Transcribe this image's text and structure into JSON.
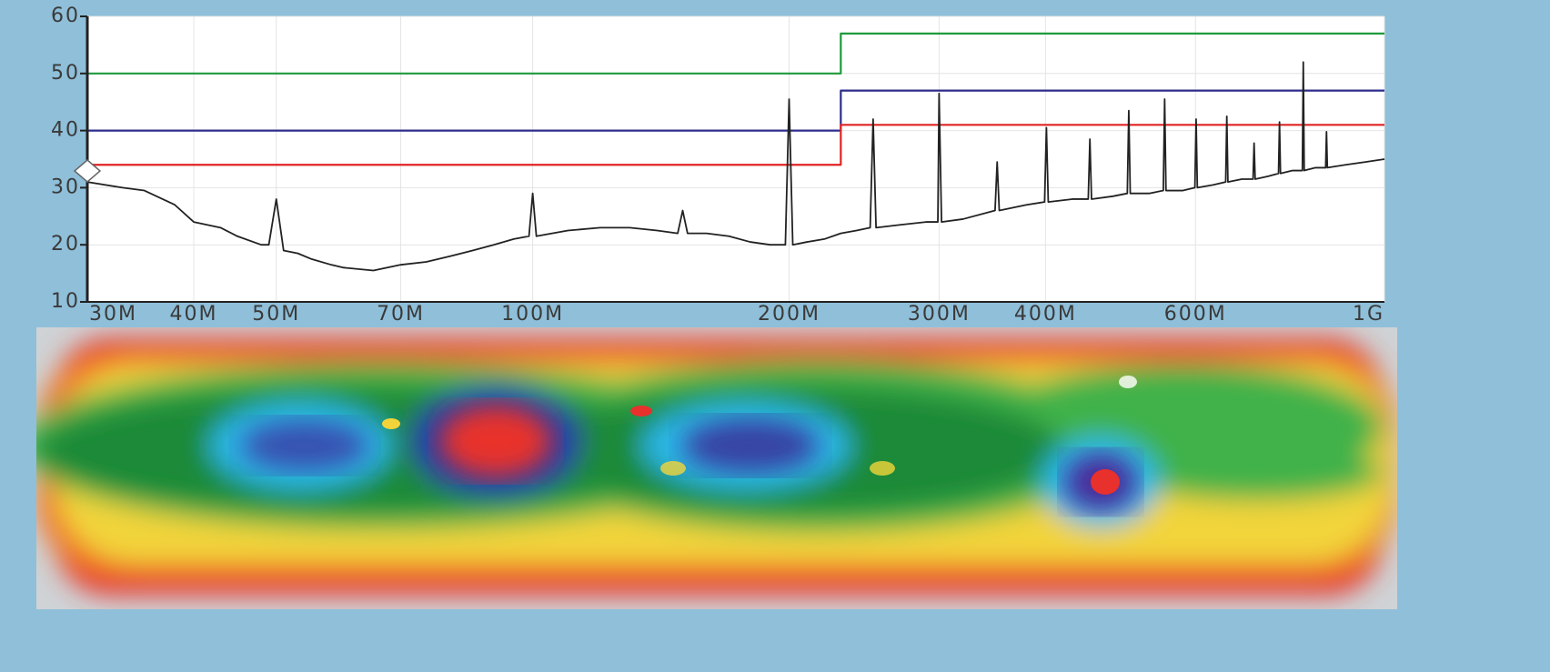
{
  "chart_data": {
    "type": "line",
    "xscale": "log",
    "grid": true,
    "xlim": [
      30,
      1000
    ],
    "ylim": [
      10,
      60
    ],
    "xticks": [
      {
        "value": 30,
        "label": "30M"
      },
      {
        "value": 40,
        "label": "40M"
      },
      {
        "value": 50,
        "label": "50M"
      },
      {
        "value": 70,
        "label": "70M"
      },
      {
        "value": 100,
        "label": "100M"
      },
      {
        "value": 200,
        "label": "200M"
      },
      {
        "value": 300,
        "label": "300M"
      },
      {
        "value": 400,
        "label": "400M"
      },
      {
        "value": 600,
        "label": "600M"
      },
      {
        "value": 1000,
        "label": "1G"
      }
    ],
    "yticks": [
      10,
      20,
      30,
      40,
      50,
      60
    ],
    "series": [
      {
        "color": "#1e9a3c",
        "x": [
          30,
          230,
          230,
          1000
        ],
        "values": [
          50,
          50,
          57,
          57
        ]
      },
      {
        "color": "#2c2c8c",
        "x": [
          30,
          230,
          230,
          1000
        ],
        "values": [
          40,
          40,
          47,
          47
        ]
      },
      {
        "color": "#e02424",
        "x": [
          30,
          230,
          230,
          1000
        ],
        "values": [
          34,
          34,
          41,
          41
        ]
      },
      {
        "color": "#222222",
        "x": [
          30,
          33,
          35,
          38,
          40,
          43,
          45,
          48,
          49,
          50,
          51,
          53,
          55,
          58,
          60,
          65,
          70,
          75,
          80,
          85,
          90,
          95,
          99,
          100,
          101,
          110,
          120,
          130,
          140,
          148,
          150,
          152,
          160,
          170,
          180,
          190,
          198,
          200,
          202,
          210,
          220,
          230,
          240,
          249,
          251,
          253,
          270,
          290,
          299,
          300,
          302,
          320,
          349,
          351,
          353,
          380,
          399,
          401,
          403,
          430,
          449,
          451,
          453,
          480,
          499,
          501,
          503,
          530,
          550,
          552,
          554,
          580,
          599,
          601,
          603,
          630,
          651,
          653,
          655,
          680,
          701,
          703,
          705,
          730,
          751,
          753,
          755,
          780,
          801,
          803,
          805,
          830,
          853,
          855,
          857,
          900,
          950,
          1000
        ],
        "values": [
          31,
          30,
          29.5,
          27,
          24,
          23,
          21.5,
          20,
          20,
          28,
          19,
          18.5,
          17.5,
          16.5,
          16,
          15.5,
          16.5,
          17,
          18,
          19,
          20,
          21,
          21.5,
          29,
          21.5,
          22.5,
          23,
          23,
          22.5,
          22,
          26,
          22,
          22,
          21.5,
          20.5,
          20,
          20,
          45.5,
          20,
          20.5,
          21,
          22,
          22.5,
          23,
          42,
          23,
          23.5,
          24,
          24,
          46.5,
          24,
          24.5,
          26,
          34.5,
          26,
          27,
          27.5,
          40.5,
          27.5,
          28,
          28,
          38.5,
          28,
          28.5,
          29,
          43.5,
          29,
          29,
          29.5,
          45.5,
          29.5,
          29.5,
          30,
          42,
          30,
          30.5,
          31,
          42.5,
          31,
          31.5,
          31.5,
          37.8,
          31.5,
          32,
          32.5,
          41.5,
          32.5,
          33,
          33,
          52,
          33,
          33.5,
          33.5,
          39.8,
          33.5,
          34,
          34.5,
          35
        ]
      }
    ]
  }
}
